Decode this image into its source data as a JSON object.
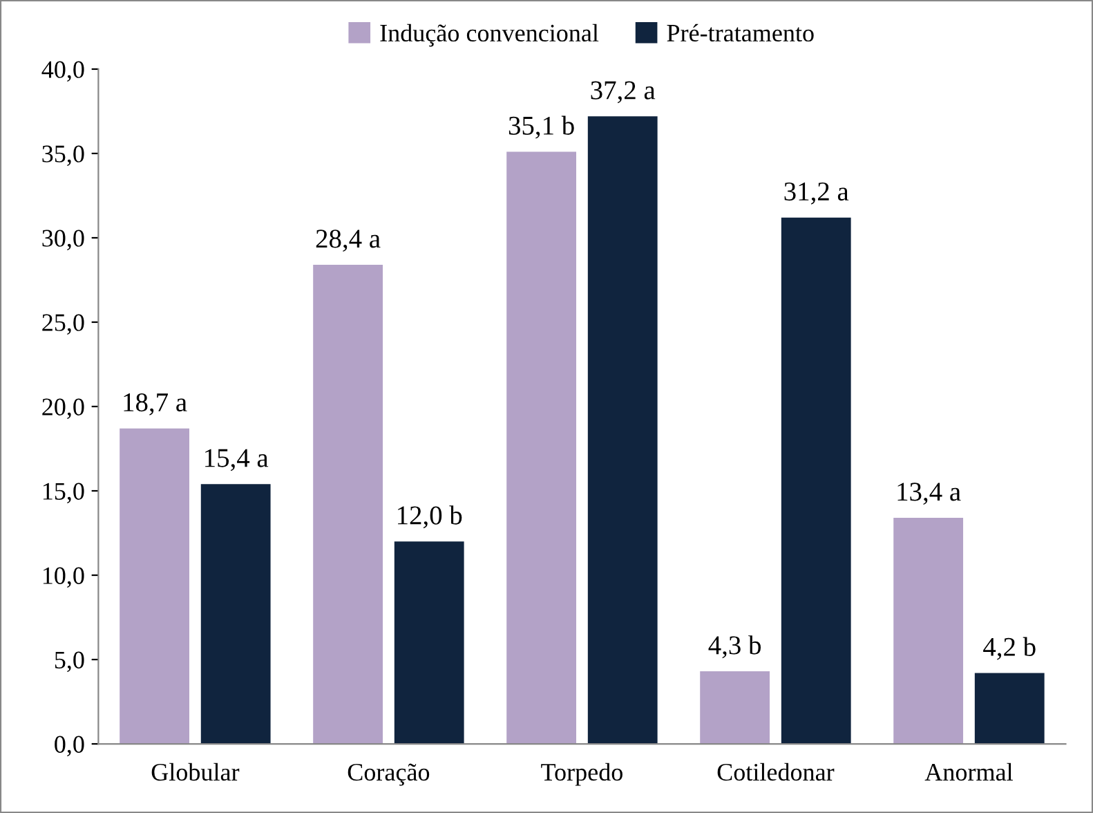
{
  "chart_data": {
    "type": "bar",
    "categories": [
      "Globular",
      "Coração",
      "Torpedo",
      "Cotiledonar",
      "Anormal"
    ],
    "series": [
      {
        "name": "Indução convencional",
        "color": "#b3a2c7",
        "values": [
          18.7,
          28.4,
          35.1,
          4.3,
          13.4
        ],
        "value_labels": [
          "18,7 a",
          "28,4 a",
          "35,1 b",
          "4,3 b",
          "13,4 a"
        ]
      },
      {
        "name": "Pré-tratamento",
        "color": "#10243e",
        "values": [
          15.4,
          12.0,
          37.2,
          31.2,
          4.2
        ],
        "value_labels": [
          "15,4 a",
          "12,0 b",
          "37,2 a",
          "31,2 a",
          "4,2 b"
        ]
      }
    ],
    "ylim": [
      0,
      40
    ],
    "yticks": [
      {
        "value": 0,
        "label": "0,0"
      },
      {
        "value": 5,
        "label": "5,0"
      },
      {
        "value": 10,
        "label": "10,0"
      },
      {
        "value": 15,
        "label": "15,0"
      },
      {
        "value": 20,
        "label": "20,0"
      },
      {
        "value": 25,
        "label": "25,0"
      },
      {
        "value": 30,
        "label": "30,0"
      },
      {
        "value": 35,
        "label": "35,0"
      },
      {
        "value": 40,
        "label": "40,0"
      }
    ],
    "grid": false,
    "legend": "top"
  }
}
